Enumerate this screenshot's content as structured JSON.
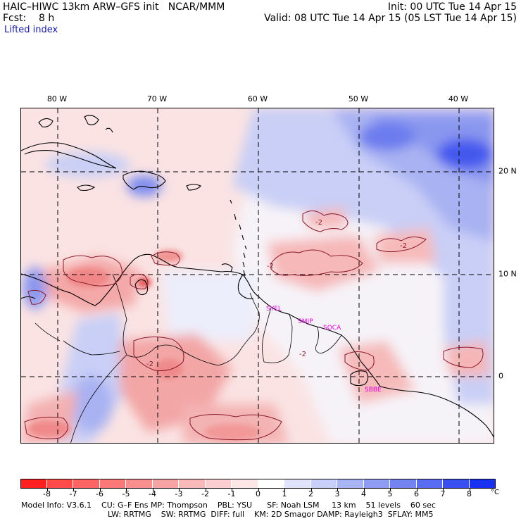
{
  "header": {
    "left_line1": "HAIC–HIWC 13km ARW–GFS init   NCAR/MMM",
    "left_line2": "Fcst:    8 h",
    "left_line3": "Lifted index",
    "right_line1": "Init: 00 UTC Tue 14 Apr 15",
    "right_line2": "Valid: 08 UTC Tue 14 Apr 15 (05 LST Tue 14 Apr 15)"
  },
  "map": {
    "longitude_labels": [
      "80 W",
      "70 W",
      "60 W",
      "50 W",
      "40 W"
    ],
    "latitude_labels": [
      "20 N",
      "10 N",
      "0"
    ],
    "contour_labels": [
      "-2",
      "-2",
      "-2",
      "-2",
      "-2"
    ],
    "stations": [
      "SYEL",
      "SMJP",
      "SOCA",
      "SBBE"
    ]
  },
  "colorbar": {
    "labels": [
      "-8",
      "-7",
      "-6",
      "-5",
      "-4",
      "-3",
      "-2",
      "-1",
      "0",
      "1",
      "2",
      "3",
      "4",
      "5",
      "6",
      "7",
      "8"
    ],
    "unit": "°C",
    "colors": [
      "#ff2020",
      "#ff4a4a",
      "#ff6464",
      "#fd7878",
      "#f98e8e",
      "#f7a3a3",
      "#f9b9b9",
      "#fbcfcf",
      "#fde6e6",
      "#ffffff",
      "#e0e4fb",
      "#c8cff8",
      "#a9b4f4",
      "#8f9cf3",
      "#7384f2",
      "#586cf1",
      "#3a4ff0",
      "#1a30f0"
    ]
  },
  "footer": {
    "line1": "Model Info: V3.6.1    CU: G–F Ens MP: Thompson    PBL: YSU      SF: Noah LSM     13 km    51 levels    60 sec",
    "line2": "LW: RRTMG    SW: RRTMG  DIFF: full    KM: 2D Smagor DAMP: Rayleigh3  SFLAY: MM5"
  }
}
